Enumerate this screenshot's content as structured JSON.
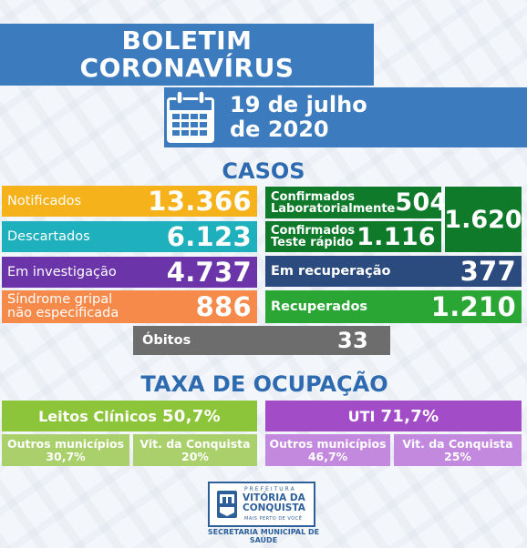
{
  "header": {
    "title_line1": "BOLETIM",
    "title_line2": "CORONAVÍRUS",
    "date_line1": "19 de julho",
    "date_line2": "de 2020",
    "calendar_icon": "calendar-icon"
  },
  "casos": {
    "title": "CASOS",
    "notificados": {
      "label": "Notificados",
      "value": "13.366"
    },
    "descartados": {
      "label": "Descartados",
      "value": "6.123"
    },
    "em_investigacao": {
      "label": "Em investigação",
      "value": "4.737"
    },
    "sindrome": {
      "label_line1": "Síndrome gripal",
      "label_line2": "não especificada",
      "value": "886"
    },
    "confirmados_lab": {
      "label_line1": "Confirmados",
      "label_line2": "Laboratorialmente",
      "value": "504"
    },
    "confirmados_teste": {
      "label_line1": "Confirmados",
      "label_line2": "Teste rápido",
      "value": "1.116"
    },
    "confirmados_total": "1.620",
    "em_recuperacao": {
      "label": "Em recuperação",
      "value": "377"
    },
    "recuperados": {
      "label": "Recuperados",
      "value": "1.210"
    },
    "obitos": {
      "label": "Óbitos",
      "value": "33"
    }
  },
  "taxa": {
    "title": "TAXA DE OCUPAÇÃO",
    "leitos": {
      "label": "Leitos Clínicos",
      "value": "50,7%"
    },
    "uti": {
      "label": "UTI",
      "value": "71,7%"
    },
    "leitos_outros": {
      "label": "Outros municípios",
      "value": "30,7%"
    },
    "leitos_vitoria": {
      "label": "Vit. da Conquista",
      "value": "20%"
    },
    "uti_outros": {
      "label": "Outros municípios",
      "value": "46,7%"
    },
    "uti_vitoria": {
      "label": "Vit. da Conquista",
      "value": "25%"
    }
  },
  "footer": {
    "prefeitura": "PREFEITURA",
    "city_line1": "VITÓRIA DA",
    "city_line2": "CONQUISTA",
    "slogan": "MAIS PERTO DE VOCÊ",
    "secretaria_line1": "SECRETARIA MUNICIPAL DE",
    "secretaria_line2": "SAÚDE"
  },
  "colors": {
    "title_blue": "#3d7bbf",
    "notificados": "#f6b21a",
    "descartados": "#1fb0bd",
    "investigacao": "#6b34a8",
    "sindrome": "#f58a4b",
    "confirmados": "#0f7a2a",
    "recuperacao": "#2b4a7e",
    "recuperados": "#2aa634",
    "obitos": "#6d6d6d",
    "leitos": "#8cc43a",
    "uti": "#a24cc8"
  }
}
